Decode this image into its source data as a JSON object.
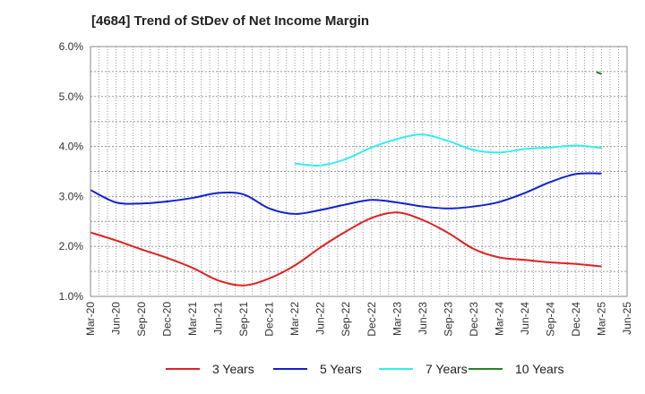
{
  "title": "[4684]  Trend of StDev of Net Income Margin",
  "chart_data": {
    "type": "line",
    "title": "[4684]  Trend of StDev of Net Income Margin",
    "xlabel": "",
    "ylabel": "",
    "x_tick_labels": [
      "Mar-20",
      "Jun-20",
      "Sep-20",
      "Dec-20",
      "Mar-21",
      "Jun-21",
      "Sep-21",
      "Dec-21",
      "Mar-22",
      "Jun-22",
      "Sep-22",
      "Dec-22",
      "Mar-23",
      "Jun-23",
      "Sep-23",
      "Dec-23",
      "Mar-24",
      "Jun-24",
      "Sep-24",
      "Dec-24",
      "Mar-25",
      "Jun-25"
    ],
    "y_tick_labels": [
      "1.0%",
      "2.0%",
      "3.0%",
      "4.0%",
      "5.0%",
      "6.0%"
    ],
    "ylim": [
      1.0,
      6.0
    ],
    "grid": true,
    "legend_position": "bottom",
    "series": [
      {
        "name": "3 Years",
        "color": "#dd2222",
        "x": [
          0,
          1,
          2,
          3,
          4,
          5,
          6,
          7,
          8,
          9,
          10,
          11,
          12,
          13,
          14,
          15,
          16,
          17,
          18,
          19,
          20
        ],
        "values": [
          2.28,
          2.12,
          1.94,
          1.77,
          1.57,
          1.32,
          1.22,
          1.36,
          1.62,
          1.98,
          2.3,
          2.57,
          2.68,
          2.53,
          2.27,
          1.95,
          1.78,
          1.73,
          1.68,
          1.65,
          1.6
        ]
      },
      {
        "name": "5 Years",
        "color": "#1122cc",
        "x": [
          0,
          1,
          2,
          3,
          4,
          5,
          6,
          7,
          8,
          9,
          10,
          11,
          12,
          13,
          14,
          15,
          16,
          17,
          18,
          19,
          20
        ],
        "values": [
          3.13,
          2.88,
          2.86,
          2.9,
          2.97,
          3.07,
          3.04,
          2.76,
          2.65,
          2.73,
          2.84,
          2.93,
          2.88,
          2.8,
          2.76,
          2.8,
          2.89,
          3.07,
          3.29,
          3.45,
          3.46
        ]
      },
      {
        "name": "7 Years",
        "color": "#33eeee",
        "x": [
          8,
          9,
          10,
          11,
          12,
          13,
          14,
          15,
          16,
          17,
          18,
          19,
          20
        ],
        "values": [
          3.66,
          3.62,
          3.75,
          3.98,
          4.15,
          4.24,
          4.11,
          3.93,
          3.88,
          3.95,
          3.98,
          4.02,
          3.97
        ]
      },
      {
        "name": "10 Years",
        "color": "#228822",
        "x": [
          19.8,
          20
        ],
        "values": [
          5.49,
          5.45
        ]
      }
    ]
  }
}
